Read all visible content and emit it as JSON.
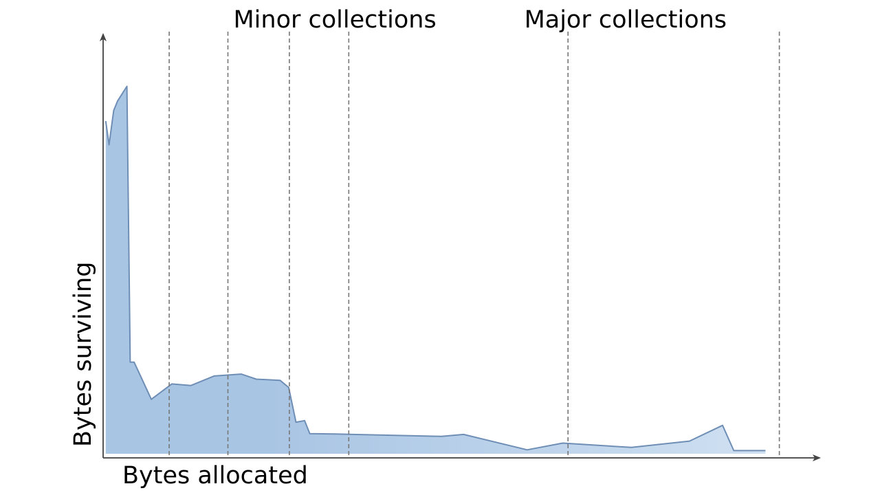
{
  "chart_data": {
    "type": "area",
    "xlabel": "Bytes allocated",
    "ylabel": "Bytes surviving",
    "annotations": [
      {
        "name": "minor",
        "text": "Minor collections",
        "x": 35.1
      },
      {
        "name": "major",
        "text": "Major collections",
        "x": 79.1
      }
    ],
    "gc_markers": {
      "minor": [
        10,
        18.9,
        28.2,
        37.2
      ],
      "major": [
        70.4,
        102.4
      ]
    },
    "xlim": [
      0,
      106.4
    ],
    "ylim": [
      0,
      100
    ],
    "grid": false,
    "legend": false,
    "colors": {
      "area_left": "#a9c5e4",
      "area_right": "#cfe0f1",
      "line": "#6e8eb5",
      "axis": "#555555",
      "marker": "#777777"
    },
    "series": [
      {
        "x": [
          0.4,
          0.9,
          1.6,
          2.2,
          3.6,
          4.1,
          4.7,
          7.3,
          10.4,
          13.3,
          16.8,
          20.9,
          23.2,
          26.8,
          28.1,
          29.2,
          30.5,
          31.3,
          35.2,
          51.2,
          54.6,
          64.2,
          69.6,
          80.0,
          88.8,
          93.8,
          95.5,
          100.3
        ],
        "y": [
          84.3,
          78.3,
          87.0,
          89.4,
          93.1,
          23.2,
          23.2,
          13.8,
          17.7,
          17.3,
          19.7,
          20.2,
          18.9,
          18.6,
          16.8,
          8.0,
          8.4,
          5.1,
          5.0,
          4.4,
          4.9,
          1.0,
          2.7,
          1.6,
          3.2,
          7.2,
          0.8,
          0.8
        ]
      }
    ]
  }
}
